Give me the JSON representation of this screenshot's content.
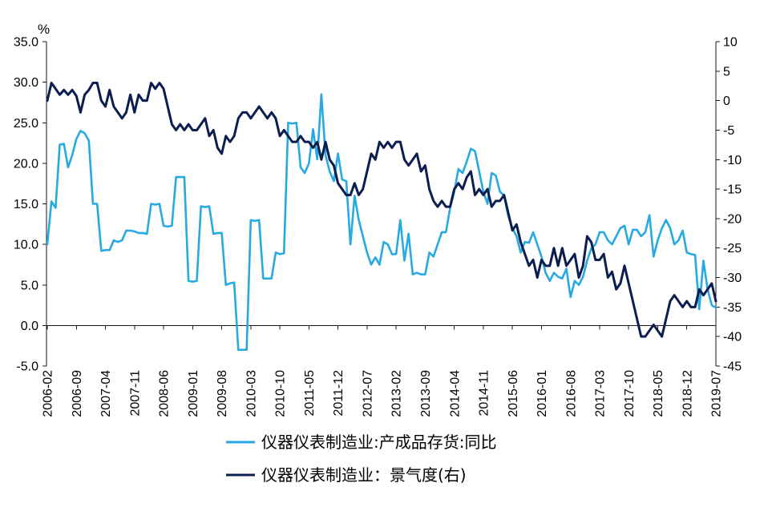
{
  "chart_data": {
    "type": "line",
    "title": "",
    "ylabel_left": "%",
    "ylim_left": [
      -5,
      35
    ],
    "ylim_right": [
      -45,
      10
    ],
    "y_ticks_left": [
      "35.0",
      "30.0",
      "25.0",
      "20.0",
      "15.0",
      "10.0",
      "5.0",
      "0.0",
      "-5.0"
    ],
    "y_ticks_right": [
      "10",
      "5",
      "0",
      "-5",
      "-10",
      "-15",
      "-20",
      "-25",
      "-30",
      "-35",
      "-40",
      "-45"
    ],
    "x_tick_labels": [
      "2006-02",
      "2006-09",
      "2007-04",
      "2007-11",
      "2008-06",
      "2009-01",
      "2009-08",
      "2010-03",
      "2010-10",
      "2011-05",
      "2011-12",
      "2012-07",
      "2013-02",
      "2013-09",
      "2014-04",
      "2014-11",
      "2015-06",
      "2016-01",
      "2016-08",
      "2017-03",
      "2017-10",
      "2018-05",
      "2018-12",
      "2019-07"
    ],
    "grid": false,
    "legend_position": "bottom",
    "x": [
      "2006-02",
      "2006-03",
      "2006-04",
      "2006-05",
      "2006-06",
      "2006-07",
      "2006-08",
      "2006-09",
      "2006-10",
      "2006-11",
      "2006-12",
      "2007-01",
      "2007-02",
      "2007-03",
      "2007-04",
      "2007-05",
      "2007-06",
      "2007-07",
      "2007-08",
      "2007-09",
      "2007-10",
      "2007-11",
      "2007-12",
      "2008-01",
      "2008-02",
      "2008-03",
      "2008-04",
      "2008-05",
      "2008-06",
      "2008-07",
      "2008-08",
      "2008-09",
      "2008-10",
      "2008-11",
      "2008-12",
      "2009-01",
      "2009-02",
      "2009-03",
      "2009-04",
      "2009-05",
      "2009-06",
      "2009-07",
      "2009-08",
      "2009-09",
      "2009-10",
      "2009-11",
      "2009-12",
      "2010-01",
      "2010-02",
      "2010-03",
      "2010-04",
      "2010-05",
      "2010-06",
      "2010-07",
      "2010-08",
      "2010-09",
      "2010-10",
      "2010-11",
      "2010-12",
      "2011-01",
      "2011-02",
      "2011-03",
      "2011-04",
      "2011-05",
      "2011-06",
      "2011-07",
      "2011-08",
      "2011-09",
      "2011-10",
      "2011-11",
      "2011-12",
      "2012-01",
      "2012-02",
      "2012-03",
      "2012-04",
      "2012-05",
      "2012-06",
      "2012-07",
      "2012-08",
      "2012-09",
      "2012-10",
      "2012-11",
      "2012-12",
      "2013-01",
      "2013-02",
      "2013-03",
      "2013-04",
      "2013-05",
      "2013-06",
      "2013-07",
      "2013-08",
      "2013-09",
      "2013-10",
      "2013-11",
      "2013-12",
      "2014-01",
      "2014-02",
      "2014-03",
      "2014-04",
      "2014-05",
      "2014-06",
      "2014-07",
      "2014-08",
      "2014-09",
      "2014-10",
      "2014-11",
      "2014-12",
      "2015-01",
      "2015-02",
      "2015-03",
      "2015-04",
      "2015-05",
      "2015-06",
      "2015-07",
      "2015-08",
      "2015-09",
      "2015-10",
      "2015-11",
      "2015-12",
      "2016-01",
      "2016-02",
      "2016-03",
      "2016-04",
      "2016-05",
      "2016-06",
      "2016-07",
      "2016-08",
      "2016-09",
      "2016-10",
      "2016-11",
      "2016-12",
      "2017-01",
      "2017-02",
      "2017-03",
      "2017-04",
      "2017-05",
      "2017-06",
      "2017-07",
      "2017-08",
      "2017-09",
      "2017-10",
      "2017-11",
      "2017-12",
      "2018-01",
      "2018-02",
      "2018-03",
      "2018-04",
      "2018-05",
      "2018-06",
      "2018-07",
      "2018-08",
      "2018-09",
      "2018-10",
      "2018-11",
      "2018-12",
      "2019-01",
      "2019-02",
      "2019-03",
      "2019-04",
      "2019-05",
      "2019-06",
      "2019-07"
    ],
    "series": [
      {
        "name": "仪器仪表制造业:产成品存货:同比",
        "axis": "left",
        "color": "#27A9E1",
        "values": [
          10.0,
          15.3,
          14.5,
          22.3,
          22.4,
          19.5,
          21.0,
          23.0,
          24.0,
          23.7,
          22.8,
          15.0,
          15.0,
          9.2,
          9.3,
          9.3,
          10.5,
          10.3,
          10.5,
          11.7,
          11.7,
          11.6,
          11.4,
          11.4,
          11.3,
          15.0,
          14.9,
          15.0,
          12.3,
          12.2,
          12.3,
          18.3,
          18.3,
          18.3,
          5.5,
          5.4,
          5.5,
          14.7,
          14.6,
          14.7,
          11.3,
          11.4,
          11.4,
          5.0,
          5.2,
          5.3,
          -3.0,
          -3.0,
          -3.0,
          13.0,
          12.9,
          13.0,
          5.8,
          5.8,
          5.8,
          9.0,
          8.8,
          8.9,
          25.0,
          24.9,
          25.0,
          19.5,
          18.8,
          20.0,
          24.2,
          20.5,
          28.5,
          21.0,
          19.0,
          17.8,
          21.2,
          18.0,
          17.8,
          10.0,
          16.0,
          13.0,
          11.0,
          9.0,
          7.5,
          8.4,
          7.5,
          10.3,
          10.0,
          8.8,
          8.8,
          13.0,
          8.0,
          11.3,
          6.3,
          6.5,
          6.3,
          6.3,
          9.0,
          8.5,
          10.0,
          11.5,
          11.5,
          14.5,
          16.5,
          19.3,
          18.8,
          20.2,
          21.8,
          21.5,
          19.0,
          16.5,
          15.0,
          18.8,
          18.5,
          16.5,
          16.0,
          13.5,
          12.0,
          11.0,
          9.0,
          10.3,
          10.2,
          11.5,
          10.0,
          8.5,
          6.5,
          5.5,
          6.5,
          6.0,
          5.8,
          7.0,
          3.5,
          5.5,
          5.0,
          6.0,
          8.0,
          9.5,
          10.0,
          11.5,
          11.5,
          10.5,
          10.0,
          11.0,
          12.0,
          12.3,
          10.0,
          11.8,
          11.8,
          11.0,
          11.5,
          13.6,
          8.5,
          10.5,
          12.0,
          13.0,
          12.0,
          10.0,
          10.5,
          11.7,
          9.0,
          8.8,
          8.7,
          2.0,
          8.0,
          4.5,
          2.5,
          2.2
        ]
      },
      {
        "name": "仪器仪表制造业：景气度(右)",
        "axis": "right",
        "color": "#0C1D4F",
        "values": [
          0,
          3,
          2,
          1,
          1.8,
          1,
          1.8,
          0.8,
          -2,
          1,
          1.8,
          3,
          3,
          0,
          -1,
          1.8,
          -1,
          -2,
          -3,
          -2,
          1,
          -2,
          1,
          0,
          0,
          3,
          2,
          3,
          2,
          -1,
          -4,
          -5,
          -4,
          -5,
          -4,
          -5,
          -5,
          -4,
          -3,
          -6,
          -5,
          -8,
          -9,
          -6,
          -7,
          -6,
          -3,
          -2,
          -2,
          -3,
          -2,
          -1,
          -2,
          -3,
          -2,
          -3,
          -6,
          -5,
          -6,
          -7,
          -7,
          -6,
          -7,
          -7,
          -8,
          -7,
          -10,
          -7,
          -10,
          -11,
          -14,
          -15,
          -16,
          -16,
          -14,
          -16,
          -15,
          -12,
          -9,
          -10,
          -7,
          -8,
          -7,
          -8,
          -7,
          -7,
          -10,
          -11,
          -10,
          -9,
          -12,
          -11,
          -15,
          -17,
          -18,
          -17,
          -18,
          -18,
          -15,
          -14,
          -15,
          -13,
          -12,
          -16,
          -15,
          -16,
          -15,
          -18,
          -17,
          -17,
          -16,
          -19,
          -22,
          -21,
          -24,
          -26,
          -28,
          -27,
          -30,
          -27,
          -28,
          -28,
          -25,
          -28,
          -25,
          -28,
          -27,
          -26,
          -30,
          -28,
          -23,
          -24,
          -27,
          -27,
          -26,
          -30,
          -29,
          -32,
          -31,
          -28,
          -31,
          -34,
          -37,
          -40,
          -40,
          -39,
          -38,
          -39,
          -40,
          -37,
          -34,
          -33,
          -34,
          -35,
          -34,
          -35,
          -35,
          -32,
          -33,
          -32,
          -31,
          -34
        ]
      }
    ]
  }
}
